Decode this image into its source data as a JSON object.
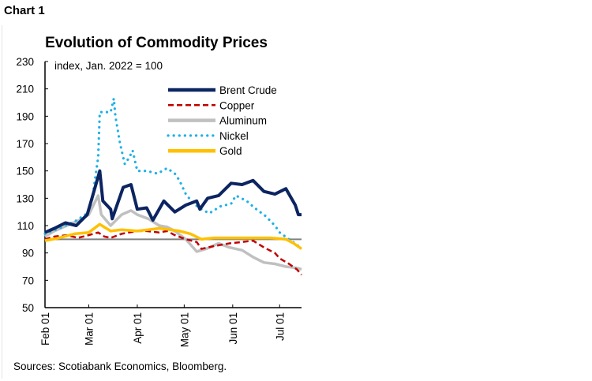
{
  "header": {
    "chart_label": "Chart 1"
  },
  "footer": {
    "source": "Sources: Scotiabank Economics, Bloomberg."
  },
  "chart_data": {
    "type": "line",
    "title": "Evolution of Commodity Prices",
    "subtitle": "index, Jan. 2022 = 100",
    "xlabel": "",
    "ylabel": "",
    "ylim": [
      50,
      230
    ],
    "yticks": [
      50,
      70,
      90,
      110,
      130,
      150,
      170,
      190,
      210,
      230
    ],
    "xlim": [
      "2022-02-01",
      "2022-07-15"
    ],
    "xticks": [
      {
        "date": "2022-02-01",
        "label": "Feb 01"
      },
      {
        "date": "2022-03-01",
        "label": "Mar 01"
      },
      {
        "date": "2022-04-01",
        "label": "Apr 01"
      },
      {
        "date": "2022-05-01",
        "label": "May 01"
      },
      {
        "date": "2022-06-01",
        "label": "Jun 01"
      },
      {
        "date": "2022-07-01",
        "label": "Jul 01"
      }
    ],
    "reference_line": {
      "y": 100,
      "color": "#808080"
    },
    "grid": false,
    "legend_position": "top-right",
    "series": [
      {
        "name": "Brent Crude",
        "color": "#0c2461",
        "style": "solid",
        "x": [
          "2022-02-01",
          "2022-02-07",
          "2022-02-14",
          "2022-02-21",
          "2022-02-28",
          "2022-03-03",
          "2022-03-08",
          "2022-03-10",
          "2022-03-15",
          "2022-03-16",
          "2022-03-23",
          "2022-03-28",
          "2022-04-01",
          "2022-04-07",
          "2022-04-11",
          "2022-04-18",
          "2022-04-25",
          "2022-05-02",
          "2022-05-09",
          "2022-05-11",
          "2022-05-16",
          "2022-05-23",
          "2022-05-31",
          "2022-06-07",
          "2022-06-14",
          "2022-06-21",
          "2022-06-28",
          "2022-07-05",
          "2022-07-11",
          "2022-07-13",
          "2022-07-15"
        ],
        "y": [
          105,
          108,
          112,
          110,
          118,
          130,
          150,
          128,
          122,
          115,
          138,
          140,
          122,
          123,
          114,
          128,
          120,
          125,
          128,
          122,
          130,
          132,
          141,
          140,
          143,
          135,
          133,
          137,
          125,
          118,
          118
        ]
      },
      {
        "name": "Copper",
        "color": "#c00000",
        "style": "dashed",
        "x": [
          "2022-02-01",
          "2022-02-07",
          "2022-02-15",
          "2022-02-22",
          "2022-03-01",
          "2022-03-07",
          "2022-03-11",
          "2022-03-15",
          "2022-03-22",
          "2022-04-01",
          "2022-04-07",
          "2022-04-15",
          "2022-04-20",
          "2022-04-25",
          "2022-05-02",
          "2022-05-09",
          "2022-05-12",
          "2022-05-20",
          "2022-05-30",
          "2022-06-07",
          "2022-06-14",
          "2022-06-21",
          "2022-06-28",
          "2022-07-01",
          "2022-07-07",
          "2022-07-12",
          "2022-07-15"
        ],
        "y": [
          100,
          102,
          103,
          101,
          103,
          105,
          102,
          101,
          104,
          106,
          106,
          105,
          106,
          103,
          100,
          98,
          93,
          95,
          97,
          98,
          99,
          94,
          90,
          86,
          82,
          78,
          74
        ]
      },
      {
        "name": "Aluminum",
        "color": "#c0c0c0",
        "style": "solid",
        "x": [
          "2022-02-01",
          "2022-02-07",
          "2022-02-15",
          "2022-02-25",
          "2022-03-01",
          "2022-03-04",
          "2022-03-07",
          "2022-03-09",
          "2022-03-15",
          "2022-03-22",
          "2022-03-28",
          "2022-04-01",
          "2022-04-08",
          "2022-04-15",
          "2022-04-20",
          "2022-04-25",
          "2022-05-02",
          "2022-05-09",
          "2022-05-15",
          "2022-05-23",
          "2022-05-30",
          "2022-06-07",
          "2022-06-14",
          "2022-06-21",
          "2022-06-28",
          "2022-07-05",
          "2022-07-12",
          "2022-07-15"
        ],
        "y": [
          102,
          106,
          110,
          115,
          118,
          125,
          132,
          118,
          110,
          118,
          121,
          118,
          115,
          110,
          109,
          106,
          100,
          91,
          93,
          97,
          94,
          92,
          87,
          83,
          82,
          80,
          79,
          78
        ]
      },
      {
        "name": "Nickel",
        "color": "#1fb0e8",
        "style": "dotted",
        "x": [
          "2022-02-01",
          "2022-02-10",
          "2022-02-20",
          "2022-02-28",
          "2022-03-03",
          "2022-03-07",
          "2022-03-08",
          "2022-03-15",
          "2022-03-17",
          "2022-03-18",
          "2022-03-21",
          "2022-03-24",
          "2022-03-27",
          "2022-03-29",
          "2022-04-01",
          "2022-04-07",
          "2022-04-14",
          "2022-04-20",
          "2022-04-25",
          "2022-04-28",
          "2022-05-02",
          "2022-05-07",
          "2022-05-12",
          "2022-05-17",
          "2022-05-24",
          "2022-05-31",
          "2022-06-03",
          "2022-06-10",
          "2022-06-15",
          "2022-06-22",
          "2022-06-28",
          "2022-07-01",
          "2022-07-07",
          "2022-07-12",
          "2022-07-15"
        ],
        "y": [
          104,
          108,
          113,
          119,
          128,
          160,
          193,
          193,
          203,
          190,
          170,
          155,
          160,
          165,
          150,
          150,
          148,
          152,
          148,
          143,
          133,
          126,
          122,
          119,
          124,
          126,
          132,
          128,
          123,
          117,
          110,
          105,
          100,
          96,
          93
        ]
      },
      {
        "name": "Gold",
        "color": "#ffc000",
        "style": "solid",
        "x": [
          "2022-02-01",
          "2022-02-10",
          "2022-02-20",
          "2022-03-01",
          "2022-03-08",
          "2022-03-15",
          "2022-03-22",
          "2022-04-01",
          "2022-04-08",
          "2022-04-15",
          "2022-04-22",
          "2022-04-28",
          "2022-05-05",
          "2022-05-12",
          "2022-05-20",
          "2022-05-30",
          "2022-06-07",
          "2022-06-15",
          "2022-06-25",
          "2022-07-05",
          "2022-07-10",
          "2022-07-15"
        ],
        "y": [
          99,
          101,
          104,
          105,
          111,
          106,
          107,
          106,
          107,
          108,
          107,
          106,
          104,
          100,
          101,
          101,
          101,
          101,
          101,
          100,
          97,
          93
        ]
      }
    ]
  }
}
